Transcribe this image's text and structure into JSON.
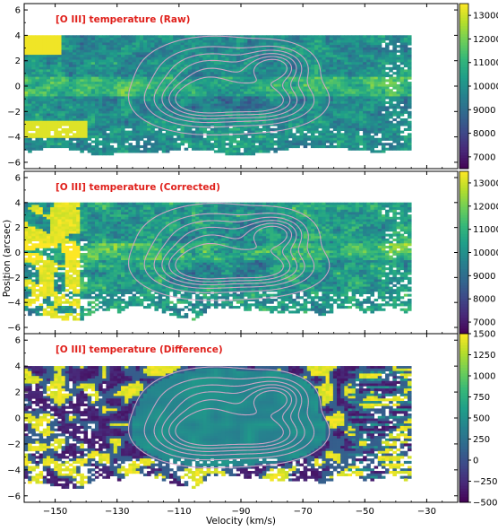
{
  "chart_data": [
    {
      "type": "heatmap",
      "title": "[O III] temperature (Raw)",
      "map": "raw",
      "colorbar": {
        "min": 6500,
        "max": 13500,
        "ticks": [
          7000,
          8000,
          9000,
          10000,
          11000,
          12000,
          13000
        ],
        "colormap": "viridis"
      },
      "xlim": [
        -160,
        -20
      ],
      "ylim": [
        -6.5,
        6.5
      ]
    },
    {
      "type": "heatmap",
      "title": "[O III] temperature (Corrected)",
      "map": "corrected",
      "colorbar": {
        "min": 6500,
        "max": 13500,
        "ticks": [
          7000,
          8000,
          9000,
          10000,
          11000,
          12000,
          13000
        ],
        "colormap": "viridis"
      },
      "xlim": [
        -160,
        -20
      ],
      "ylim": [
        -6.5,
        6.5
      ]
    },
    {
      "type": "heatmap",
      "title": "[O III] temperature (Difference)",
      "map": "difference",
      "colorbar": {
        "min": -500,
        "max": 1500,
        "ticks": [
          -500,
          -250,
          0,
          250,
          500,
          750,
          1000,
          1250,
          1500
        ],
        "colormap": "viridis"
      },
      "xlim": [
        -160,
        -20
      ],
      "ylim": [
        -6.5,
        6.5
      ]
    }
  ],
  "axes": {
    "xlabel": "Velocity (km/s)",
    "ylabel": "Position (arcsec)",
    "xticks": [
      -150,
      -130,
      -110,
      -90,
      -70,
      -50,
      -30
    ],
    "yticks": [
      -6,
      -4,
      -2,
      0,
      2,
      4,
      6
    ]
  },
  "contours": {
    "color": "#d4a6c8",
    "blobs": [
      {
        "vx": -103,
        "py": -1.2,
        "sx": 10,
        "sy": 1.1,
        "amp": 1.0
      },
      {
        "vx": -82,
        "py": -1.2,
        "sx": 9,
        "sy": 1.0,
        "amp": 0.9
      },
      {
        "vx": -79,
        "py": 1.5,
        "sx": 6,
        "sy": 0.9,
        "amp": 0.9
      },
      {
        "vx": -100,
        "py": 1.2,
        "sx": 11,
        "sy": 1.3,
        "amp": 0.55
      },
      {
        "vx": -93,
        "py": 0.0,
        "sx": 25,
        "sy": 3.2,
        "amp": 0.22
      }
    ],
    "levels": [
      0.16,
      0.32,
      0.48,
      0.64,
      0.8,
      0.95
    ]
  },
  "colors": {
    "viridis": [
      "#440154",
      "#482878",
      "#3e4989",
      "#31688e",
      "#26828e",
      "#1f9e89",
      "#35b779",
      "#6ece58",
      "#b5de2b",
      "#fde725"
    ],
    "title_color": "#e0201b"
  }
}
